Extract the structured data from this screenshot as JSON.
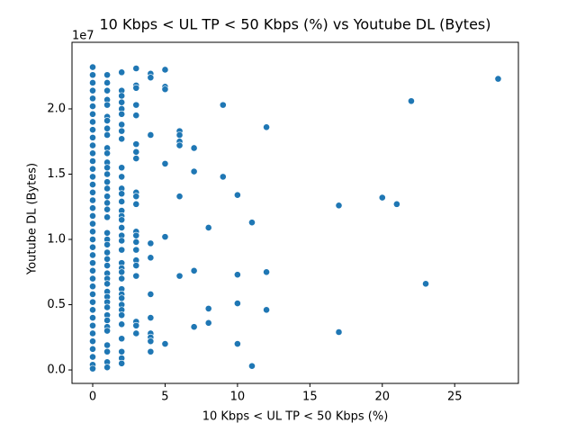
{
  "chart_data": {
    "type": "scatter",
    "title": "10 Kbps < UL TP < 50 Kbps (%) vs Youtube DL (Bytes)",
    "x_label": "10 Kbps < UL TP < 50 Kbps (%)",
    "y_label": "Youtube DL (Bytes)",
    "y_offset_label": "1e7",
    "color": "#1f77b4",
    "xlim": [
      -1.43,
      29.4
    ],
    "ylim": [
      -1030000,
      25100000
    ],
    "xticks": [
      0,
      5,
      10,
      15,
      20,
      25
    ],
    "yticks": [
      {
        "value": 0,
        "label": "0.0"
      },
      {
        "value": 5000000,
        "label": "0.5"
      },
      {
        "value": 10000000,
        "label": "1.0"
      },
      {
        "value": 15000000,
        "label": "1.5"
      },
      {
        "value": 20000000,
        "label": "2.0"
      }
    ],
    "x": [
      28,
      22,
      23,
      21,
      20,
      17,
      17,
      12,
      12,
      12,
      11,
      11,
      10,
      10,
      10,
      10,
      9,
      9,
      8,
      8,
      8,
      7,
      7,
      7,
      7,
      6,
      6,
      6,
      6,
      6,
      6,
      5,
      5,
      5,
      5,
      5,
      5,
      4,
      4,
      4,
      4,
      4,
      4,
      4,
      4,
      4,
      4,
      4,
      3,
      3,
      3,
      3,
      3,
      3,
      3,
      3,
      3,
      3,
      3,
      3,
      3,
      3,
      3,
      3,
      3,
      3,
      3,
      3,
      3,
      2,
      2,
      2,
      2,
      2,
      2,
      2,
      2,
      2,
      2,
      2,
      2,
      2,
      2,
      2,
      2,
      2,
      2,
      2,
      2,
      2,
      2,
      2,
      2,
      2,
      2,
      2,
      2,
      2,
      2,
      2,
      2,
      2,
      2,
      2,
      2,
      1,
      1,
      1,
      1,
      1,
      1,
      1,
      1,
      1,
      1,
      1,
      1,
      1,
      1,
      1,
      1,
      1,
      1,
      1,
      1,
      1,
      1,
      1,
      1,
      1,
      1,
      1,
      1,
      1,
      1,
      1,
      1,
      1,
      1,
      1,
      1,
      1,
      1,
      1,
      1,
      1,
      0,
      0,
      0,
      0,
      0,
      0,
      0,
      0,
      0,
      0,
      0,
      0,
      0,
      0,
      0,
      0,
      0,
      0,
      0,
      0,
      0,
      0,
      0,
      0,
      0,
      0,
      0,
      0,
      0,
      0,
      0,
      0,
      0,
      0,
      0,
      0,
      0,
      0,
      0,
      0
    ],
    "values": [
      22300000,
      20600000,
      6600000,
      12700000,
      13200000,
      12600000,
      2900000,
      18600000,
      7500000,
      4600000,
      11300000,
      300000,
      13400000,
      7300000,
      5100000,
      2000000,
      20300000,
      14800000,
      10900000,
      4700000,
      3600000,
      17000000,
      15200000,
      7600000,
      3300000,
      18300000,
      18000000,
      17500000,
      17200000,
      13300000,
      7200000,
      23000000,
      21700000,
      21500000,
      15800000,
      10200000,
      2000000,
      22700000,
      22400000,
      18000000,
      9700000,
      8600000,
      5800000,
      4000000,
      2800000,
      2500000,
      2200000,
      1400000,
      23100000,
      21800000,
      21600000,
      20300000,
      19500000,
      17300000,
      16700000,
      16200000,
      13600000,
      13300000,
      12700000,
      10600000,
      10300000,
      9800000,
      9200000,
      8400000,
      8000000,
      7200000,
      3700000,
      3400000,
      2800000,
      22800000,
      21400000,
      21000000,
      20500000,
      20000000,
      19600000,
      18800000,
      18300000,
      17700000,
      15500000,
      14800000,
      13900000,
      13500000,
      12900000,
      12200000,
      11800000,
      11500000,
      10900000,
      10300000,
      9900000,
      9200000,
      8200000,
      7800000,
      7500000,
      7000000,
      6200000,
      5800000,
      5500000,
      5000000,
      4600000,
      4200000,
      3500000,
      2400000,
      1400000,
      900000,
      500000,
      22600000,
      22000000,
      21400000,
      20700000,
      20300000,
      19400000,
      19100000,
      18500000,
      18000000,
      17000000,
      16600000,
      15900000,
      15500000,
      15000000,
      14400000,
      13900000,
      13300000,
      12800000,
      12300000,
      11700000,
      10500000,
      10000000,
      9600000,
      9000000,
      8500000,
      8000000,
      7400000,
      7000000,
      6600000,
      6000000,
      5600000,
      5200000,
      4800000,
      4200000,
      3800000,
      3300000,
      3000000,
      1900000,
      1400000,
      600000,
      200000,
      23200000,
      22600000,
      22000000,
      21400000,
      20800000,
      20200000,
      19600000,
      19000000,
      18400000,
      17800000,
      17200000,
      16600000,
      16000000,
      15400000,
      14800000,
      14200000,
      13600000,
      13000000,
      12400000,
      11800000,
      11200000,
      10600000,
      10000000,
      9400000,
      8800000,
      8200000,
      7600000,
      7000000,
      6400000,
      5800000,
      5200000,
      4600000,
      4000000,
      3400000,
      2800000,
      2200000,
      1600000,
      1000000,
      400000,
      100000
    ]
  }
}
